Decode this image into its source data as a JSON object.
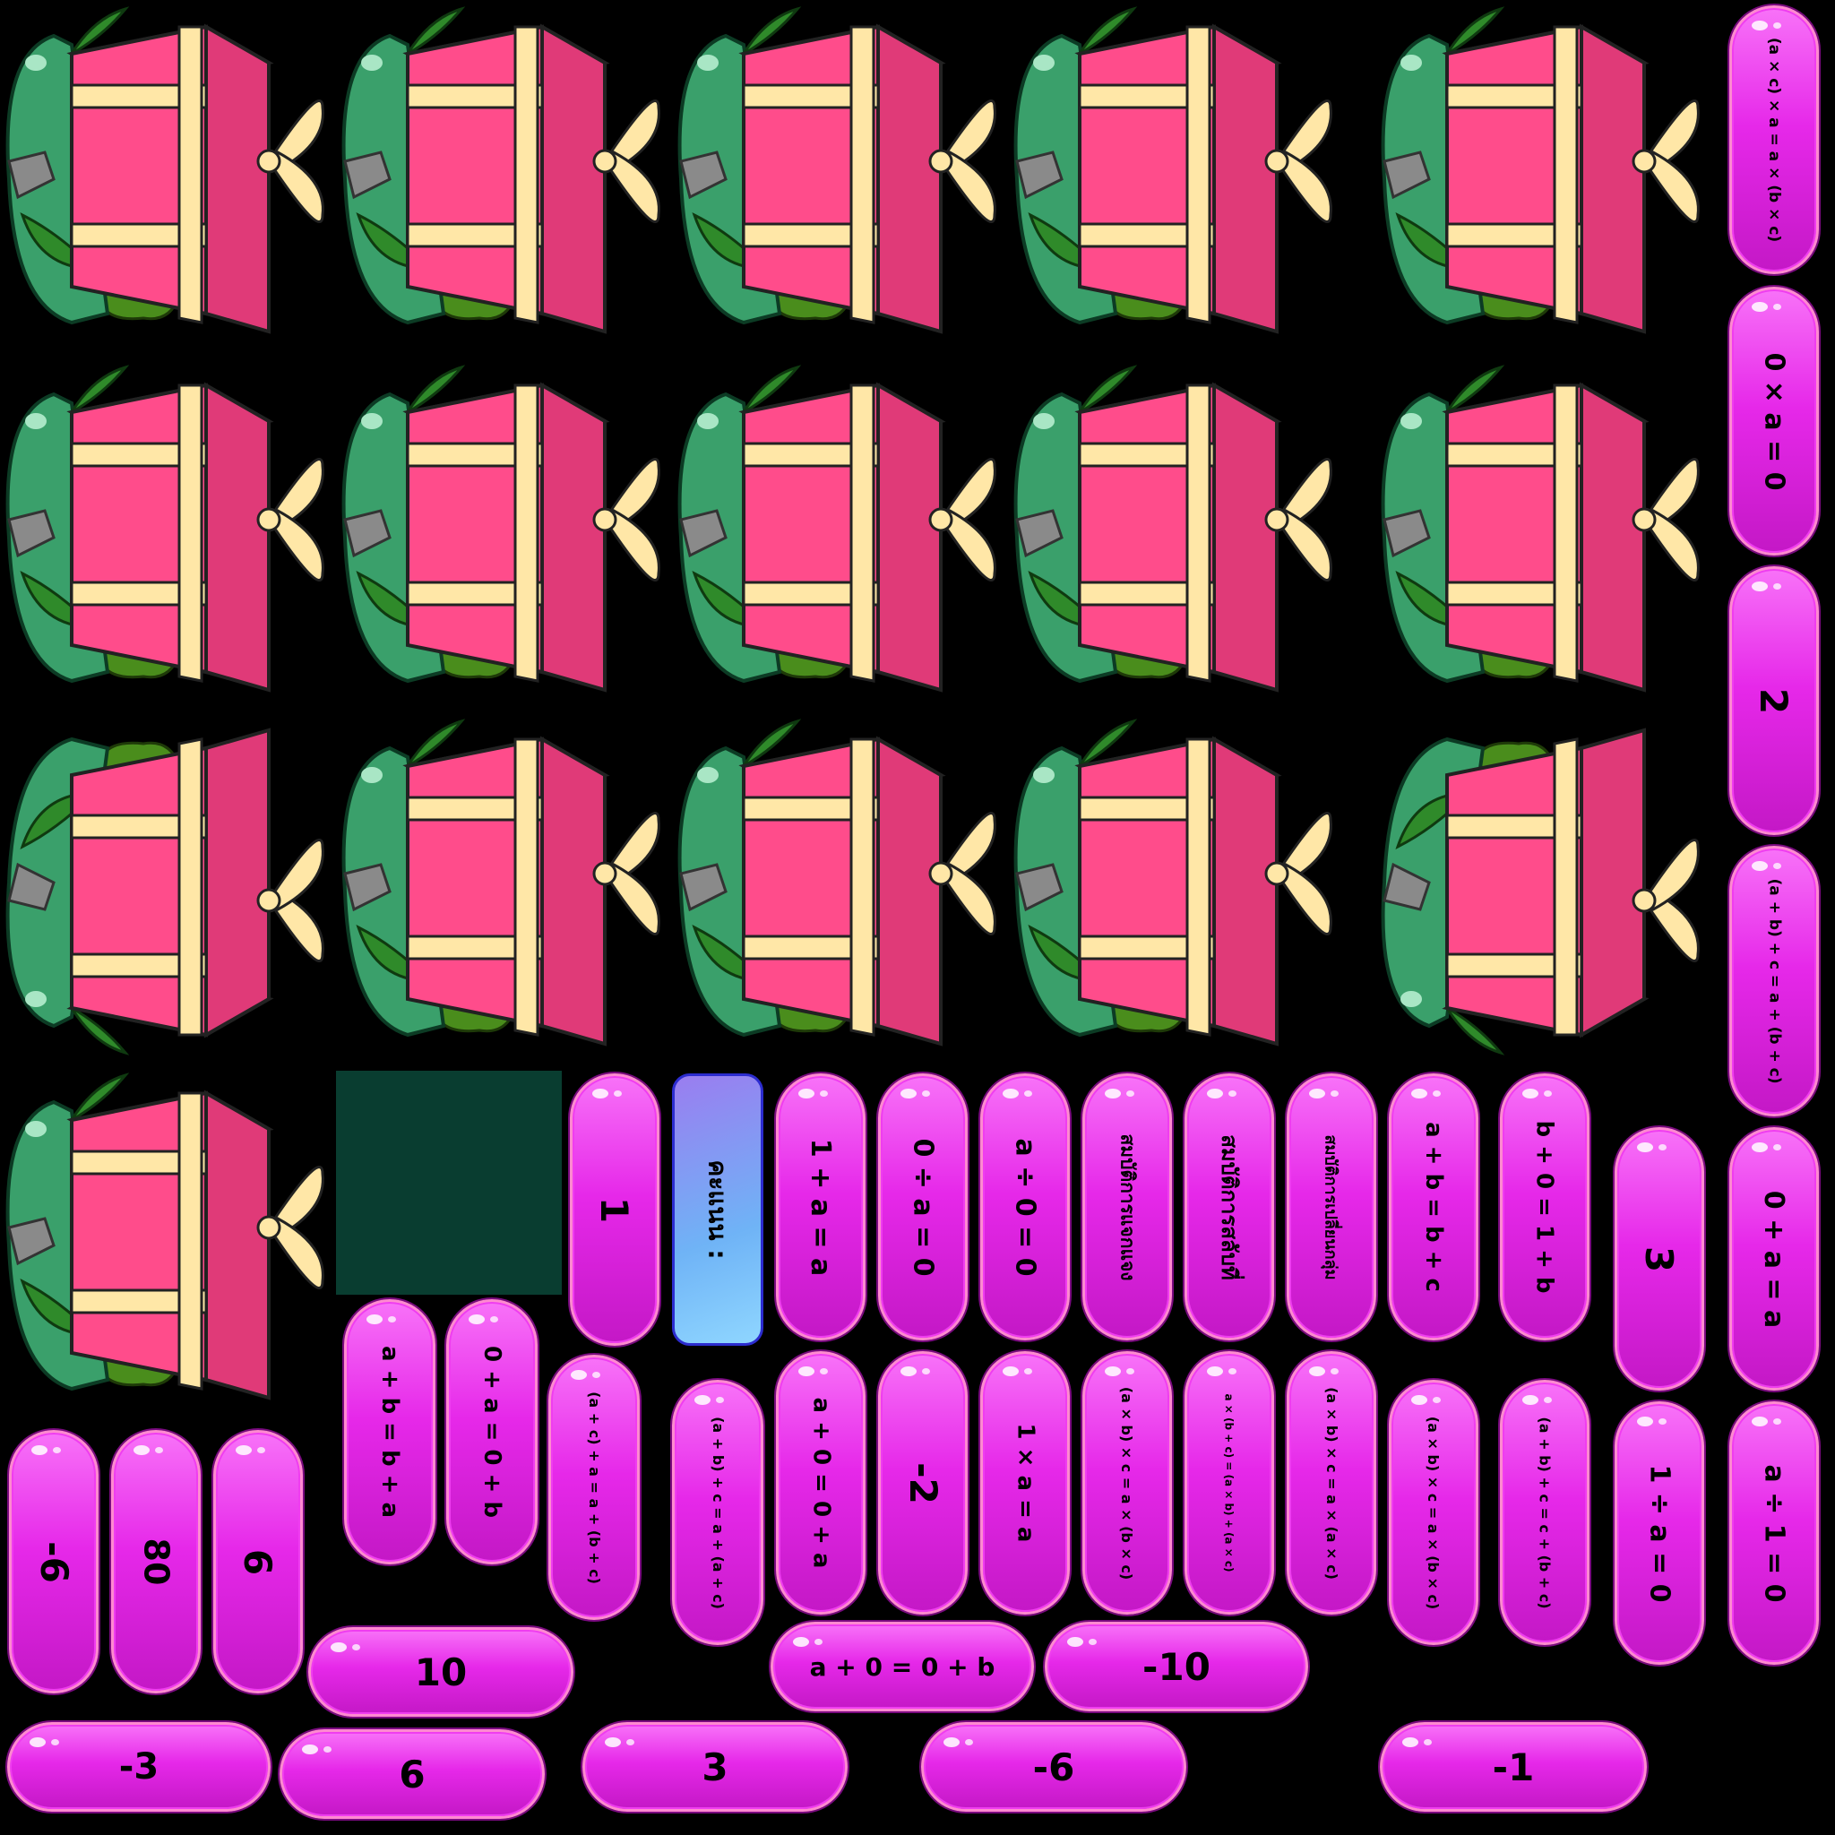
{
  "scene": "Drag-and-drop math game sprite sheet (properties of numbers)",
  "gifts": {
    "count": 16,
    "icon": "gift-box-icon",
    "colors": {
      "box": "#ff4c8b",
      "ribbon": "#ffe7a7",
      "leaf": "#3aa06b",
      "bush": "#4a8d1c"
    }
  },
  "panel": {
    "color": "#093d30"
  },
  "tiles": {
    "t01": "(a × c) × a = a × (b × c)",
    "t02": "0 × a = 0",
    "t03": "2",
    "t04": "(a + b) + c = a + (b + c)",
    "t05": "0 + a = a",
    "t06": "a ÷ 1 = 0",
    "t07": "1",
    "t08": "คะแนน :",
    "t09": "1 + a = a",
    "t10": "0 ÷ a = 0",
    "t11": "a ÷ 0 = 0",
    "t12": "สมบัติการแจกแจง",
    "t13": "สมบัติการสลับที่",
    "t14": "สมบัติการเปลี่ยนกลุ่ม",
    "t15": "a + b = b + c",
    "t16": "b + 0 = 1 + b",
    "t17": "3",
    "t18": "1 ÷ a = 0",
    "t19": "a + b = b + a",
    "t20": "0 + a = 0 + b",
    "t21": "(a + c) + a = a + (b + c)",
    "t22": "(a + b) + c = a + (a + c)",
    "t23": "a + 0 = 0 + a",
    "t24": "-2",
    "t25": "1 × a = a",
    "t26": "(a × b) × c = a × (b × c)",
    "t27": "a × (b + c) = (a × b) + (a × c)",
    "t28": "(a × b) × c = a × (a × c)",
    "t29": "(a × b) × c = a × (b × c)",
    "t30": "(a + b) + c = c + (b + c)",
    "t31": "-6",
    "t32": "80",
    "t33": "6",
    "t34": "10",
    "t35": "a + 0 = 0 + b",
    "t36": "-10",
    "t37": "-3",
    "t38": "6",
    "t39": "3",
    "t40": "-6",
    "t41": "-1"
  },
  "colors": {
    "tile": "#e628e9",
    "tile_border": "#ff8ad0",
    "score_tile": "#6fb3f6",
    "background": "#000000"
  }
}
